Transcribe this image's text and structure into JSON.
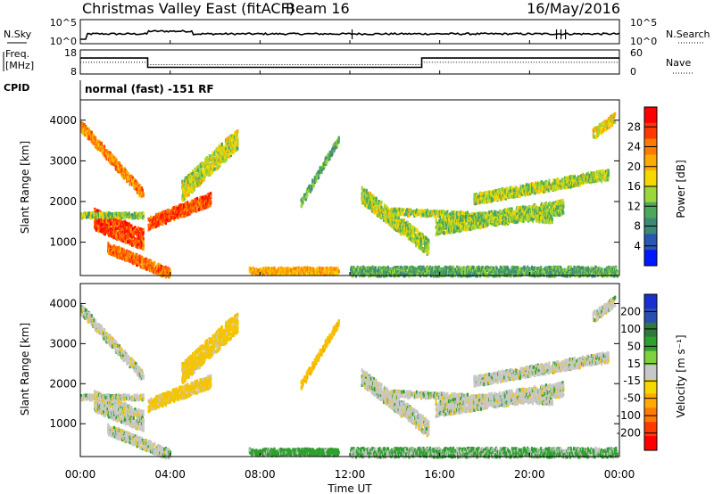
{
  "header": {
    "station": "Christmas Valley East (fitACF)",
    "beam": "Beam 16",
    "date": "16/May/2016"
  },
  "noise_panel": {
    "left_label": "N.Sky",
    "right_label": "N.Search",
    "left_ticks": [
      "10^5",
      "10^0"
    ],
    "right_ticks": [
      "10^5",
      "10^0"
    ]
  },
  "freq_panel": {
    "left_label_1": "Freq.",
    "left_label_2": "[MHz]",
    "right_label": "Nave",
    "left_ticks": [
      "18",
      "8"
    ],
    "right_ticks": [
      "60",
      "0"
    ]
  },
  "cpid": {
    "label": "CPID",
    "value": "normal (fast) -151 RF"
  },
  "power_panel": {
    "ylabel": "Slant Range [km]",
    "y_ticks": [
      "4000",
      "3000",
      "2000",
      "1000"
    ],
    "cbar_label": "Power [dB]",
    "cbar_ticks": [
      "28",
      "24",
      "20",
      "16",
      "12",
      "8",
      "4"
    ],
    "cbar_colors": [
      "#ff0000",
      "#ff3a00",
      "#ff7a00",
      "#ffaa00",
      "#f5d800",
      "#9bd63a",
      "#4ca85a",
      "#3b8a78",
      "#2a55b0",
      "#0018ff"
    ]
  },
  "velocity_panel": {
    "ylabel": "Slant Range [km]",
    "y_ticks": [
      "4000",
      "3000",
      "2000",
      "1000"
    ],
    "cbar_label": "Velocity [m s⁻¹]",
    "cbar_ticks": [
      "200",
      "100",
      "50",
      "15",
      "-15",
      "-50",
      "-100",
      "-200"
    ],
    "cbar_colors": [
      "#1a2fd0",
      "#2a4fb0",
      "#2e7a3a",
      "#2fa02f",
      "#7fd23f",
      "#c8c8c8",
      "#f5d800",
      "#ffaa00",
      "#ff7a00",
      "#ff3a00",
      "#ff0000"
    ]
  },
  "x_axis": {
    "label": "Time UT",
    "ticks": [
      "00:00",
      "04:00",
      "08:00",
      "12:00",
      "16:00",
      "20:00",
      "00:00"
    ]
  },
  "chart_data": {
    "type": "heatmap",
    "x_range_hours": [
      0,
      24
    ],
    "y_range_km": [
      180,
      4500
    ],
    "frequency_mhz": [
      {
        "start_hour": 0,
        "end_hour": 3,
        "value": 14.5
      },
      {
        "start_hour": 3,
        "end_hour": 15.2,
        "value": 10.5
      },
      {
        "start_hour": 15.2,
        "end_hour": 24,
        "value": 14.5
      }
    ],
    "nave": [
      {
        "start_hour": 0,
        "end_hour": 3,
        "value": 28
      },
      {
        "start_hour": 3,
        "end_hour": 15.2,
        "value": 22
      },
      {
        "start_hour": 15.2,
        "end_hour": 24,
        "value": 28
      }
    ],
    "scatter_regions": [
      {
        "t0": 0.0,
        "t1": 2.8,
        "r0": 3900,
        "r1": 2200,
        "width": 250,
        "power": 22,
        "velocity": 0
      },
      {
        "t0": 0.6,
        "t1": 2.8,
        "r0": 1600,
        "r1": 1100,
        "width": 500,
        "power": 26,
        "velocity": 0
      },
      {
        "t0": 1.2,
        "t1": 4.0,
        "r0": 900,
        "r1": 250,
        "width": 250,
        "power": 24,
        "velocity": 0
      },
      {
        "t0": 0.0,
        "t1": 2.8,
        "r0": 1700,
        "r1": 1700,
        "width": 120,
        "power": 13,
        "velocity": 0
      },
      {
        "t0": 3.0,
        "t1": 5.8,
        "r0": 1500,
        "r1": 2100,
        "width": 300,
        "power": 26,
        "velocity": -30
      },
      {
        "t0": 4.5,
        "t1": 7.0,
        "r0": 2300,
        "r1": 3600,
        "width": 500,
        "power": 15,
        "velocity": -30
      },
      {
        "t0": 7.5,
        "t1": 11.5,
        "r0": 330,
        "r1": 330,
        "width": 160,
        "power": 20,
        "velocity": 30
      },
      {
        "t0": 9.8,
        "t1": 11.5,
        "r0": 2000,
        "r1": 3600,
        "width": 180,
        "power": 10,
        "velocity": -40
      },
      {
        "t0": 12.5,
        "t1": 15.5,
        "r0": 2200,
        "r1": 900,
        "width": 400,
        "power": 14,
        "velocity": 0
      },
      {
        "t0": 13.5,
        "t1": 21.0,
        "r0": 1800,
        "r1": 1600,
        "width": 150,
        "power": 14,
        "velocity": 0
      },
      {
        "t0": 15.8,
        "t1": 21.5,
        "r0": 1400,
        "r1": 1900,
        "width": 350,
        "power": 13,
        "velocity": 0
      },
      {
        "t0": 17.5,
        "t1": 23.5,
        "r0": 2100,
        "r1": 2700,
        "width": 250,
        "power": 14,
        "velocity": 0
      },
      {
        "t0": 22.8,
        "t1": 23.8,
        "r0": 3700,
        "r1": 4100,
        "width": 250,
        "power": 18,
        "velocity": 0
      },
      {
        "t0": 12.0,
        "t1": 23.9,
        "r0": 320,
        "r1": 320,
        "width": 220,
        "power": 10,
        "velocity": 20
      }
    ]
  }
}
